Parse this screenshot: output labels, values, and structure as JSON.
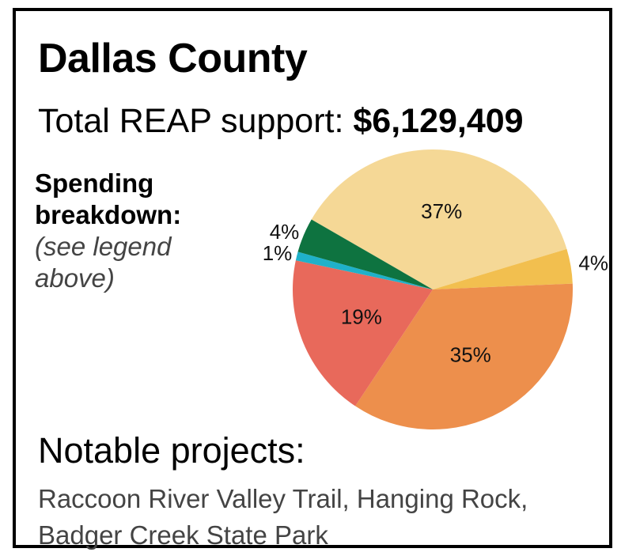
{
  "title": "Dallas County",
  "total": {
    "label": "Total REAP support:",
    "value": "$6,129,409"
  },
  "spending": {
    "heading_line1": "Spending",
    "heading_line2": "breakdown:",
    "note_line1": "(see legend",
    "note_line2": "above)"
  },
  "notable": {
    "heading": "Notable projects:",
    "line1": "Raccoon River Valley Trail, Hanging Rock,",
    "line2": "Badger Creek State Park"
  },
  "chart_data": {
    "type": "pie",
    "slices": [
      {
        "label": "37%",
        "value": 37,
        "color": "#f5d896",
        "label_pos": "inside"
      },
      {
        "label": "4%",
        "value": 4,
        "color": "#f2bf4f",
        "label_pos": "outside-right"
      },
      {
        "label": "35%",
        "value": 35,
        "color": "#ed8f4c",
        "label_pos": "inside"
      },
      {
        "label": "19%",
        "value": 19,
        "color": "#e8695b",
        "label_pos": "inside"
      },
      {
        "label": "1%",
        "value": 1,
        "color": "#1fb1c9",
        "label_pos": "outside-left"
      },
      {
        "label": "4%",
        "value": 4,
        "color": "#0e7340",
        "label_pos": "outside-left"
      }
    ]
  }
}
